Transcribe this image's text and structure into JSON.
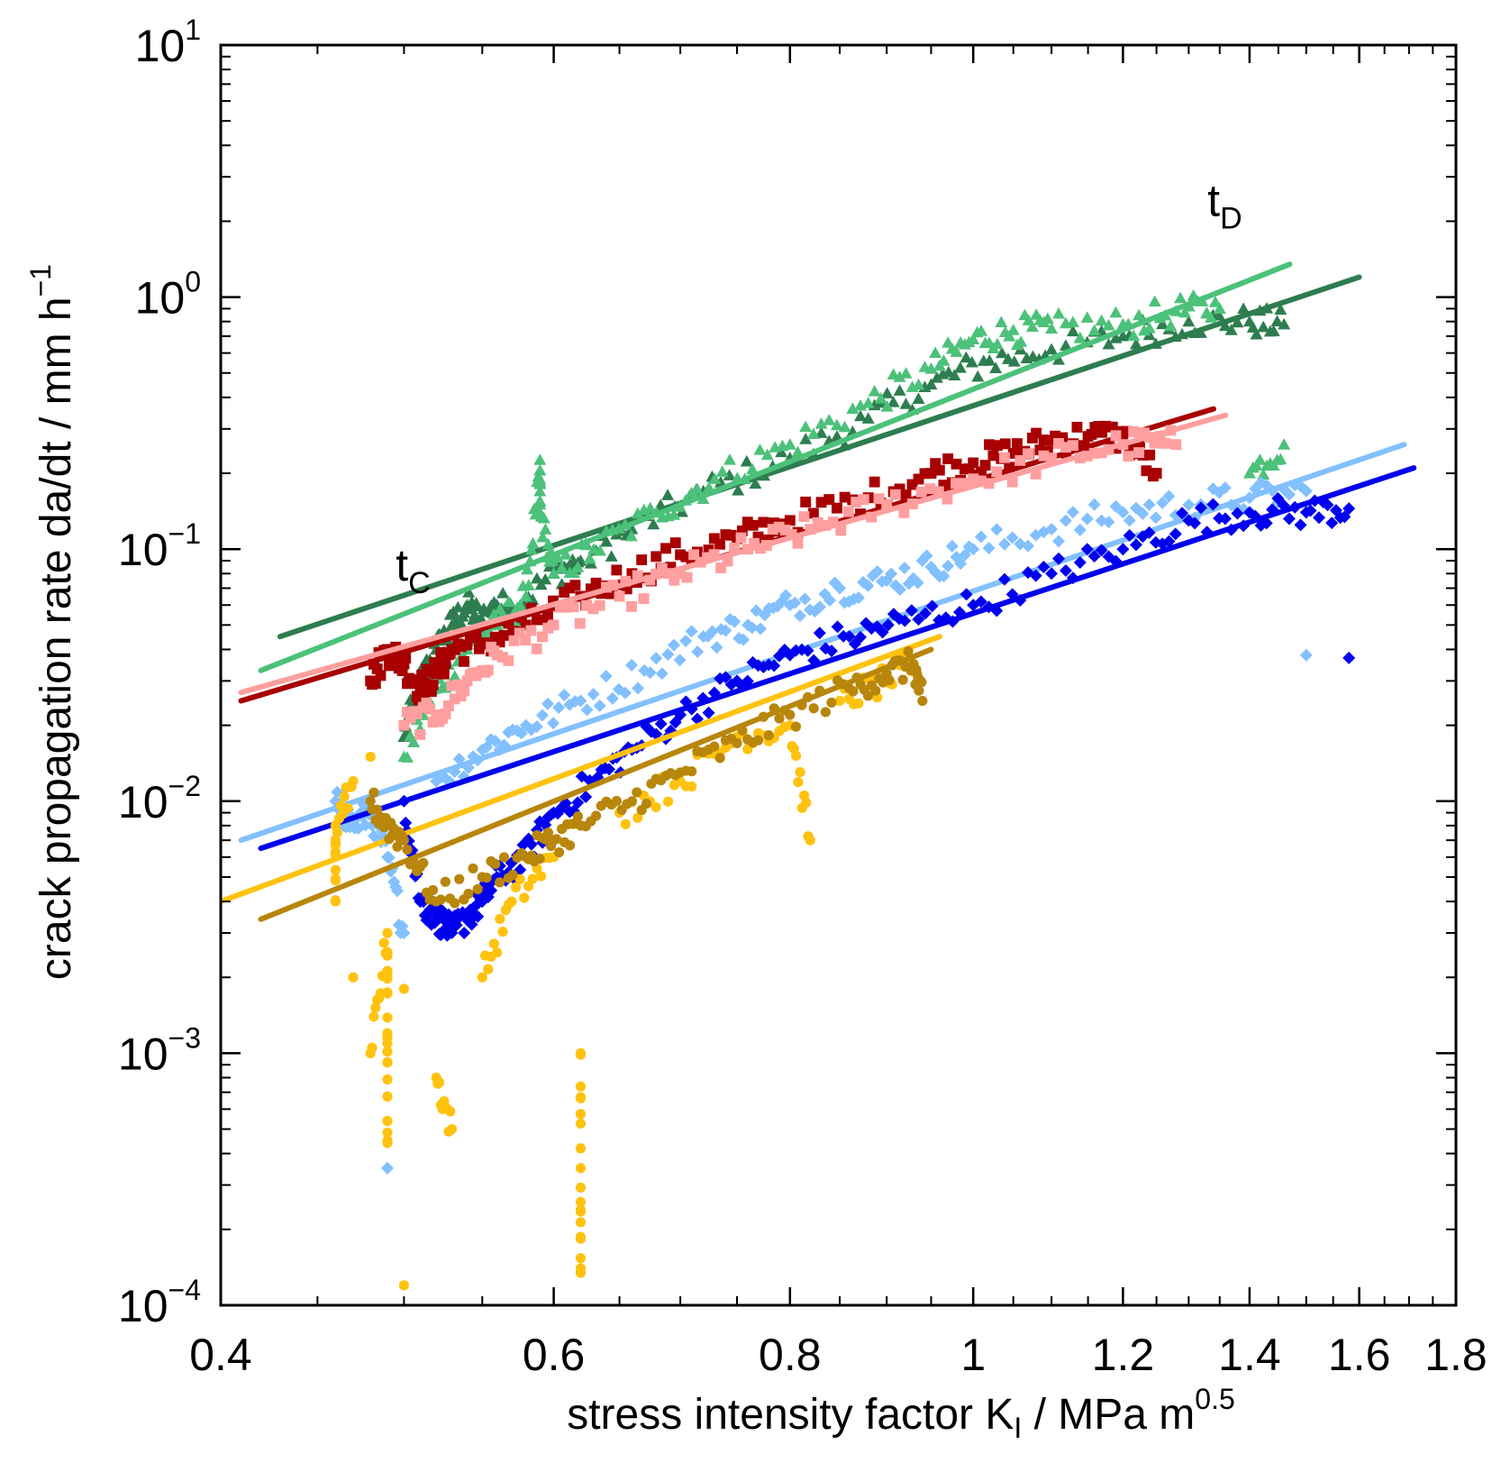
{
  "chart_data": {
    "type": "scatter",
    "title": "",
    "xlabel": {
      "main": "stress intensity factor  K",
      "sub": "I",
      "mid": "  /  MPa m",
      "sup": "0.5"
    },
    "ylabel": {
      "main": "crack propagation rate  da/dt  /  mm h",
      "sup": "−1"
    },
    "x_scale": "log",
    "y_scale": "log",
    "xlim": [
      0.4,
      1.8
    ],
    "ylim": [
      0.0001,
      10
    ],
    "x_ticks": [
      0.4,
      0.6,
      0.8,
      1.0,
      1.2,
      1.4,
      1.6,
      1.8
    ],
    "x_tick_labels": [
      "0.4",
      "0.6",
      "0.8",
      "1",
      "1.2",
      "1.4",
      "1.6",
      "1.8"
    ],
    "y_ticks": [
      {
        "value": 10,
        "base": "10",
        "exp": "1"
      },
      {
        "value": 1,
        "base": "10",
        "exp": "0"
      },
      {
        "value": 0.1,
        "base": "10",
        "exp": "−1"
      },
      {
        "value": 0.01,
        "base": "10",
        "exp": "−2"
      },
      {
        "value": 0.001,
        "base": "10",
        "exp": "−3"
      },
      {
        "value": 0.0001,
        "base": "10",
        "exp": "−4"
      }
    ],
    "annotations": [
      {
        "id": "tc",
        "base": "t",
        "sub": "C",
        "x": 0.495,
        "y": 0.075
      },
      {
        "id": "td",
        "base": "t",
        "sub": "D",
        "x": 1.33,
        "y": 2.1
      }
    ],
    "series": [
      {
        "name": "dark green",
        "color": "#2e7d4f",
        "marker": "triangle",
        "fit": [
          [
            0.43,
            0.045
          ],
          [
            1.6,
            1.2
          ]
        ],
        "points": [
          [
            0.5,
            0.018
          ],
          [
            0.51,
            0.03
          ],
          [
            0.52,
            0.04
          ],
          [
            0.53,
            0.05
          ],
          [
            0.54,
            0.06
          ],
          [
            0.55,
            0.052
          ],
          [
            0.56,
            0.06
          ],
          [
            0.57,
            0.058
          ],
          [
            0.6,
            0.08
          ],
          [
            0.62,
            0.09
          ],
          [
            0.66,
            0.12
          ],
          [
            0.72,
            0.17
          ],
          [
            0.8,
            0.23
          ],
          [
            0.88,
            0.33
          ],
          [
            0.95,
            0.45
          ],
          [
            1.02,
            0.56
          ],
          [
            1.1,
            0.62
          ],
          [
            1.2,
            0.7
          ],
          [
            1.3,
            0.8
          ],
          [
            1.4,
            0.8
          ],
          [
            1.46,
            0.78
          ]
        ]
      },
      {
        "name": "light green",
        "color": "#4cc17a",
        "marker": "triangle",
        "fit": [
          [
            0.42,
            0.033
          ],
          [
            1.47,
            1.35
          ]
        ],
        "points": [
          [
            0.5,
            0.015
          ],
          [
            0.52,
            0.028
          ],
          [
            0.54,
            0.04
          ],
          [
            0.56,
            0.05
          ],
          [
            0.58,
            0.065
          ],
          [
            0.59,
            0.205
          ],
          [
            0.59,
            0.14
          ],
          [
            0.6,
            0.08
          ],
          [
            0.63,
            0.1
          ],
          [
            0.68,
            0.14
          ],
          [
            0.73,
            0.19
          ],
          [
            0.8,
            0.26
          ],
          [
            0.88,
            0.38
          ],
          [
            0.95,
            0.52
          ],
          [
            1.0,
            0.68
          ],
          [
            1.05,
            0.74
          ],
          [
            1.1,
            0.75
          ],
          [
            1.2,
            0.78
          ],
          [
            1.28,
            0.88
          ],
          [
            1.35,
            0.9
          ],
          [
            1.4,
            0.2
          ],
          [
            1.46,
            0.26
          ]
        ]
      },
      {
        "name": "dark red",
        "color": "#a80000",
        "marker": "square",
        "fit": [
          [
            0.41,
            0.025
          ],
          [
            1.34,
            0.36
          ]
        ],
        "points": [
          [
            0.48,
            0.03
          ],
          [
            0.49,
            0.04
          ],
          [
            0.5,
            0.035
          ],
          [
            0.51,
            0.028
          ],
          [
            0.52,
            0.032
          ],
          [
            0.53,
            0.04
          ],
          [
            0.55,
            0.042
          ],
          [
            0.58,
            0.05
          ],
          [
            0.62,
            0.065
          ],
          [
            0.66,
            0.08
          ],
          [
            0.7,
            0.095
          ],
          [
            0.75,
            0.11
          ],
          [
            0.8,
            0.13
          ],
          [
            0.88,
            0.16
          ],
          [
            0.95,
            0.2
          ],
          [
            1.0,
            0.22
          ],
          [
            1.05,
            0.24
          ],
          [
            1.1,
            0.27
          ],
          [
            1.15,
            0.28
          ],
          [
            1.2,
            0.28
          ],
          [
            1.25,
            0.2
          ]
        ]
      },
      {
        "name": "pink",
        "color": "#ff9e9e",
        "marker": "square",
        "fit": [
          [
            0.41,
            0.027
          ],
          [
            1.36,
            0.34
          ]
        ],
        "points": [
          [
            0.5,
            0.02
          ],
          [
            0.52,
            0.022
          ],
          [
            0.54,
            0.03
          ],
          [
            0.56,
            0.038
          ],
          [
            0.6,
            0.05
          ],
          [
            0.65,
            0.065
          ],
          [
            0.7,
            0.08
          ],
          [
            0.76,
            0.1
          ],
          [
            0.82,
            0.12
          ],
          [
            0.9,
            0.15
          ],
          [
            1.0,
            0.19
          ],
          [
            1.1,
            0.23
          ],
          [
            1.2,
            0.26
          ],
          [
            1.28,
            0.26
          ]
        ]
      },
      {
        "name": "light blue",
        "color": "#82c0ff",
        "marker": "diamond",
        "fit": [
          [
            0.41,
            0.007
          ],
          [
            1.69,
            0.26
          ]
        ],
        "points": [
          [
            0.46,
            0.01
          ],
          [
            0.47,
            0.008
          ],
          [
            0.48,
            0.009
          ],
          [
            0.49,
            0.006
          ],
          [
            0.5,
            0.003
          ],
          [
            0.52,
            0.012
          ],
          [
            0.55,
            0.016
          ],
          [
            0.58,
            0.02
          ],
          [
            0.62,
            0.025
          ],
          [
            0.67,
            0.033
          ],
          [
            0.72,
            0.045
          ],
          [
            0.76,
            0.05
          ],
          [
            0.8,
            0.06
          ],
          [
            0.85,
            0.07
          ],
          [
            0.9,
            0.075
          ],
          [
            0.95,
            0.085
          ],
          [
            1.0,
            0.1
          ],
          [
            1.1,
            0.12
          ],
          [
            1.2,
            0.14
          ],
          [
            1.3,
            0.15
          ],
          [
            1.4,
            0.16
          ],
          [
            1.5,
            0.17
          ],
          [
            1.5,
            0.038
          ],
          [
            0.49,
            0.00035
          ]
        ]
      },
      {
        "name": "blue",
        "color": "#0000ee",
        "marker": "diamond",
        "fit": [
          [
            0.42,
            0.0065
          ],
          [
            1.71,
            0.21
          ]
        ],
        "points": [
          [
            0.5,
            0.01
          ],
          [
            0.51,
            0.004
          ],
          [
            0.52,
            0.0035
          ],
          [
            0.53,
            0.003
          ],
          [
            0.54,
            0.0035
          ],
          [
            0.55,
            0.004
          ],
          [
            0.56,
            0.005
          ],
          [
            0.58,
            0.006
          ],
          [
            0.6,
            0.009
          ],
          [
            0.63,
            0.012
          ],
          [
            0.66,
            0.016
          ],
          [
            0.7,
            0.022
          ],
          [
            0.75,
            0.03
          ],
          [
            0.8,
            0.038
          ],
          [
            0.86,
            0.045
          ],
          [
            0.92,
            0.052
          ],
          [
            1.0,
            0.06
          ],
          [
            1.1,
            0.08
          ],
          [
            1.2,
            0.1
          ],
          [
            1.3,
            0.13
          ],
          [
            1.4,
            0.14
          ],
          [
            1.5,
            0.14
          ],
          [
            1.58,
            0.145
          ],
          [
            1.58,
            0.037
          ]
        ]
      },
      {
        "name": "gold",
        "color": "#ffc20e",
        "marker": "circle",
        "fit": [
          [
            0.4,
            0.004
          ],
          [
            0.96,
            0.045
          ]
        ],
        "points": [
          [
            0.46,
            0.004
          ],
          [
            0.46,
            0.008
          ],
          [
            0.47,
            0.012
          ],
          [
            0.47,
            0.002
          ],
          [
            0.48,
            0.015
          ],
          [
            0.48,
            0.001
          ],
          [
            0.49,
            0.003
          ],
          [
            0.49,
            0.0012
          ],
          [
            0.49,
            0.00045
          ],
          [
            0.5,
            0.0018
          ],
          [
            0.5,
            0.00012
          ],
          [
            0.52,
            0.0008
          ],
          [
            0.53,
            0.0005
          ],
          [
            0.55,
            0.002
          ],
          [
            0.57,
            0.004
          ],
          [
            0.6,
            0.006
          ],
          [
            0.62,
            0.001
          ],
          [
            0.62,
            0.00035
          ],
          [
            0.62,
            0.00014
          ],
          [
            0.65,
            0.009
          ],
          [
            0.7,
            0.012
          ],
          [
            0.75,
            0.018
          ],
          [
            0.8,
            0.02
          ],
          [
            0.82,
            0.007
          ],
          [
            0.85,
            0.025
          ],
          [
            0.9,
            0.03
          ],
          [
            0.93,
            0.035
          ]
        ]
      },
      {
        "name": "dark gold",
        "color": "#b8860b",
        "marker": "circle",
        "fit": [
          [
            0.42,
            0.0034
          ],
          [
            0.95,
            0.04
          ]
        ],
        "points": [
          [
            0.48,
            0.01
          ],
          [
            0.49,
            0.008
          ],
          [
            0.5,
            0.007
          ],
          [
            0.52,
            0.004
          ],
          [
            0.55,
            0.005
          ],
          [
            0.58,
            0.006
          ],
          [
            0.6,
            0.007
          ],
          [
            0.62,
            0.008
          ],
          [
            0.66,
            0.01
          ],
          [
            0.7,
            0.013
          ],
          [
            0.75,
            0.017
          ],
          [
            0.8,
            0.022
          ],
          [
            0.86,
            0.028
          ],
          [
            0.9,
            0.032
          ],
          [
            0.93,
            0.035
          ],
          [
            0.94,
            0.025
          ]
        ]
      }
    ]
  }
}
